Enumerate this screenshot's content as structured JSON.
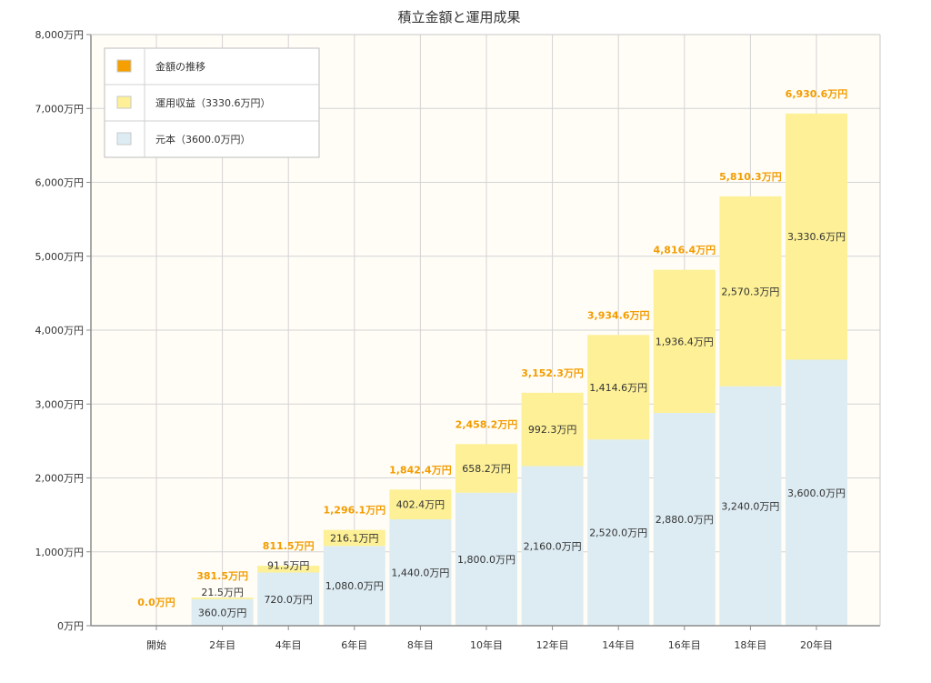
{
  "chart_data": {
    "type": "bar",
    "stacked": true,
    "title": "積立金額と運用成果",
    "categories": [
      "開始",
      "2年目",
      "4年目",
      "6年目",
      "8年目",
      "10年目",
      "12年目",
      "14年目",
      "16年目",
      "18年目",
      "20年目"
    ],
    "series": [
      {
        "name": "元本（3600.0万円）",
        "color": "#ddecf3",
        "values": [
          0,
          360.0,
          720.0,
          1080.0,
          1440.0,
          1800.0,
          2160.0,
          2520.0,
          2880.0,
          3240.0,
          3600.0
        ],
        "labels": [
          "",
          "360.0万円",
          "720.0万円",
          "1,080.0万円",
          "1,440.0万円",
          "1,800.0万円",
          "2,160.0万円",
          "2,520.0万円",
          "2,880.0万円",
          "3,240.0万円",
          "3,600.0万円"
        ]
      },
      {
        "name": "運用収益（3330.6万円）",
        "color": "#fdf096",
        "values": [
          0,
          21.5,
          91.5,
          216.1,
          402.4,
          658.2,
          992.3,
          1414.6,
          1936.4,
          2570.3,
          3330.6
        ],
        "labels": [
          "",
          "21.5万円",
          "91.5万円",
          "216.1万円",
          "402.4万円",
          "658.2万円",
          "992.3万円",
          "1,414.6万円",
          "1,936.4万円",
          "2,570.3万円",
          "3,330.6万円"
        ]
      }
    ],
    "totals": {
      "name": "金額の推移",
      "color": "#f5a000",
      "values": [
        0.0,
        381.5,
        811.5,
        1296.1,
        1842.4,
        2458.2,
        3152.3,
        3934.6,
        4816.4,
        5810.3,
        6930.6
      ],
      "labels": [
        "0.0万円",
        "381.5万円",
        "811.5万円",
        "1,296.1万円",
        "1,842.4万円",
        "2,458.2万円",
        "3,152.3万円",
        "3,934.6万円",
        "4,816.4万円",
        "5,810.3万円",
        "6,930.6万円"
      ]
    },
    "ylim": [
      0,
      8000
    ],
    "yticks": [
      0,
      1000,
      2000,
      3000,
      4000,
      5000,
      6000,
      7000,
      8000
    ],
    "ytick_labels": [
      "0万円",
      "1,000万円",
      "2,000万円",
      "3,000万円",
      "4,000万円",
      "5,000万円",
      "6,000万円",
      "7,000万円",
      "8,000万円"
    ],
    "grid": true,
    "legend_position": "top-left",
    "legend": [
      {
        "label": "金額の推移",
        "color": "#f5a000"
      },
      {
        "label": "運用収益（3330.6万円）",
        "color": "#fdf096"
      },
      {
        "label": "元本（3600.0万円）",
        "color": "#ddecf3"
      }
    ]
  }
}
